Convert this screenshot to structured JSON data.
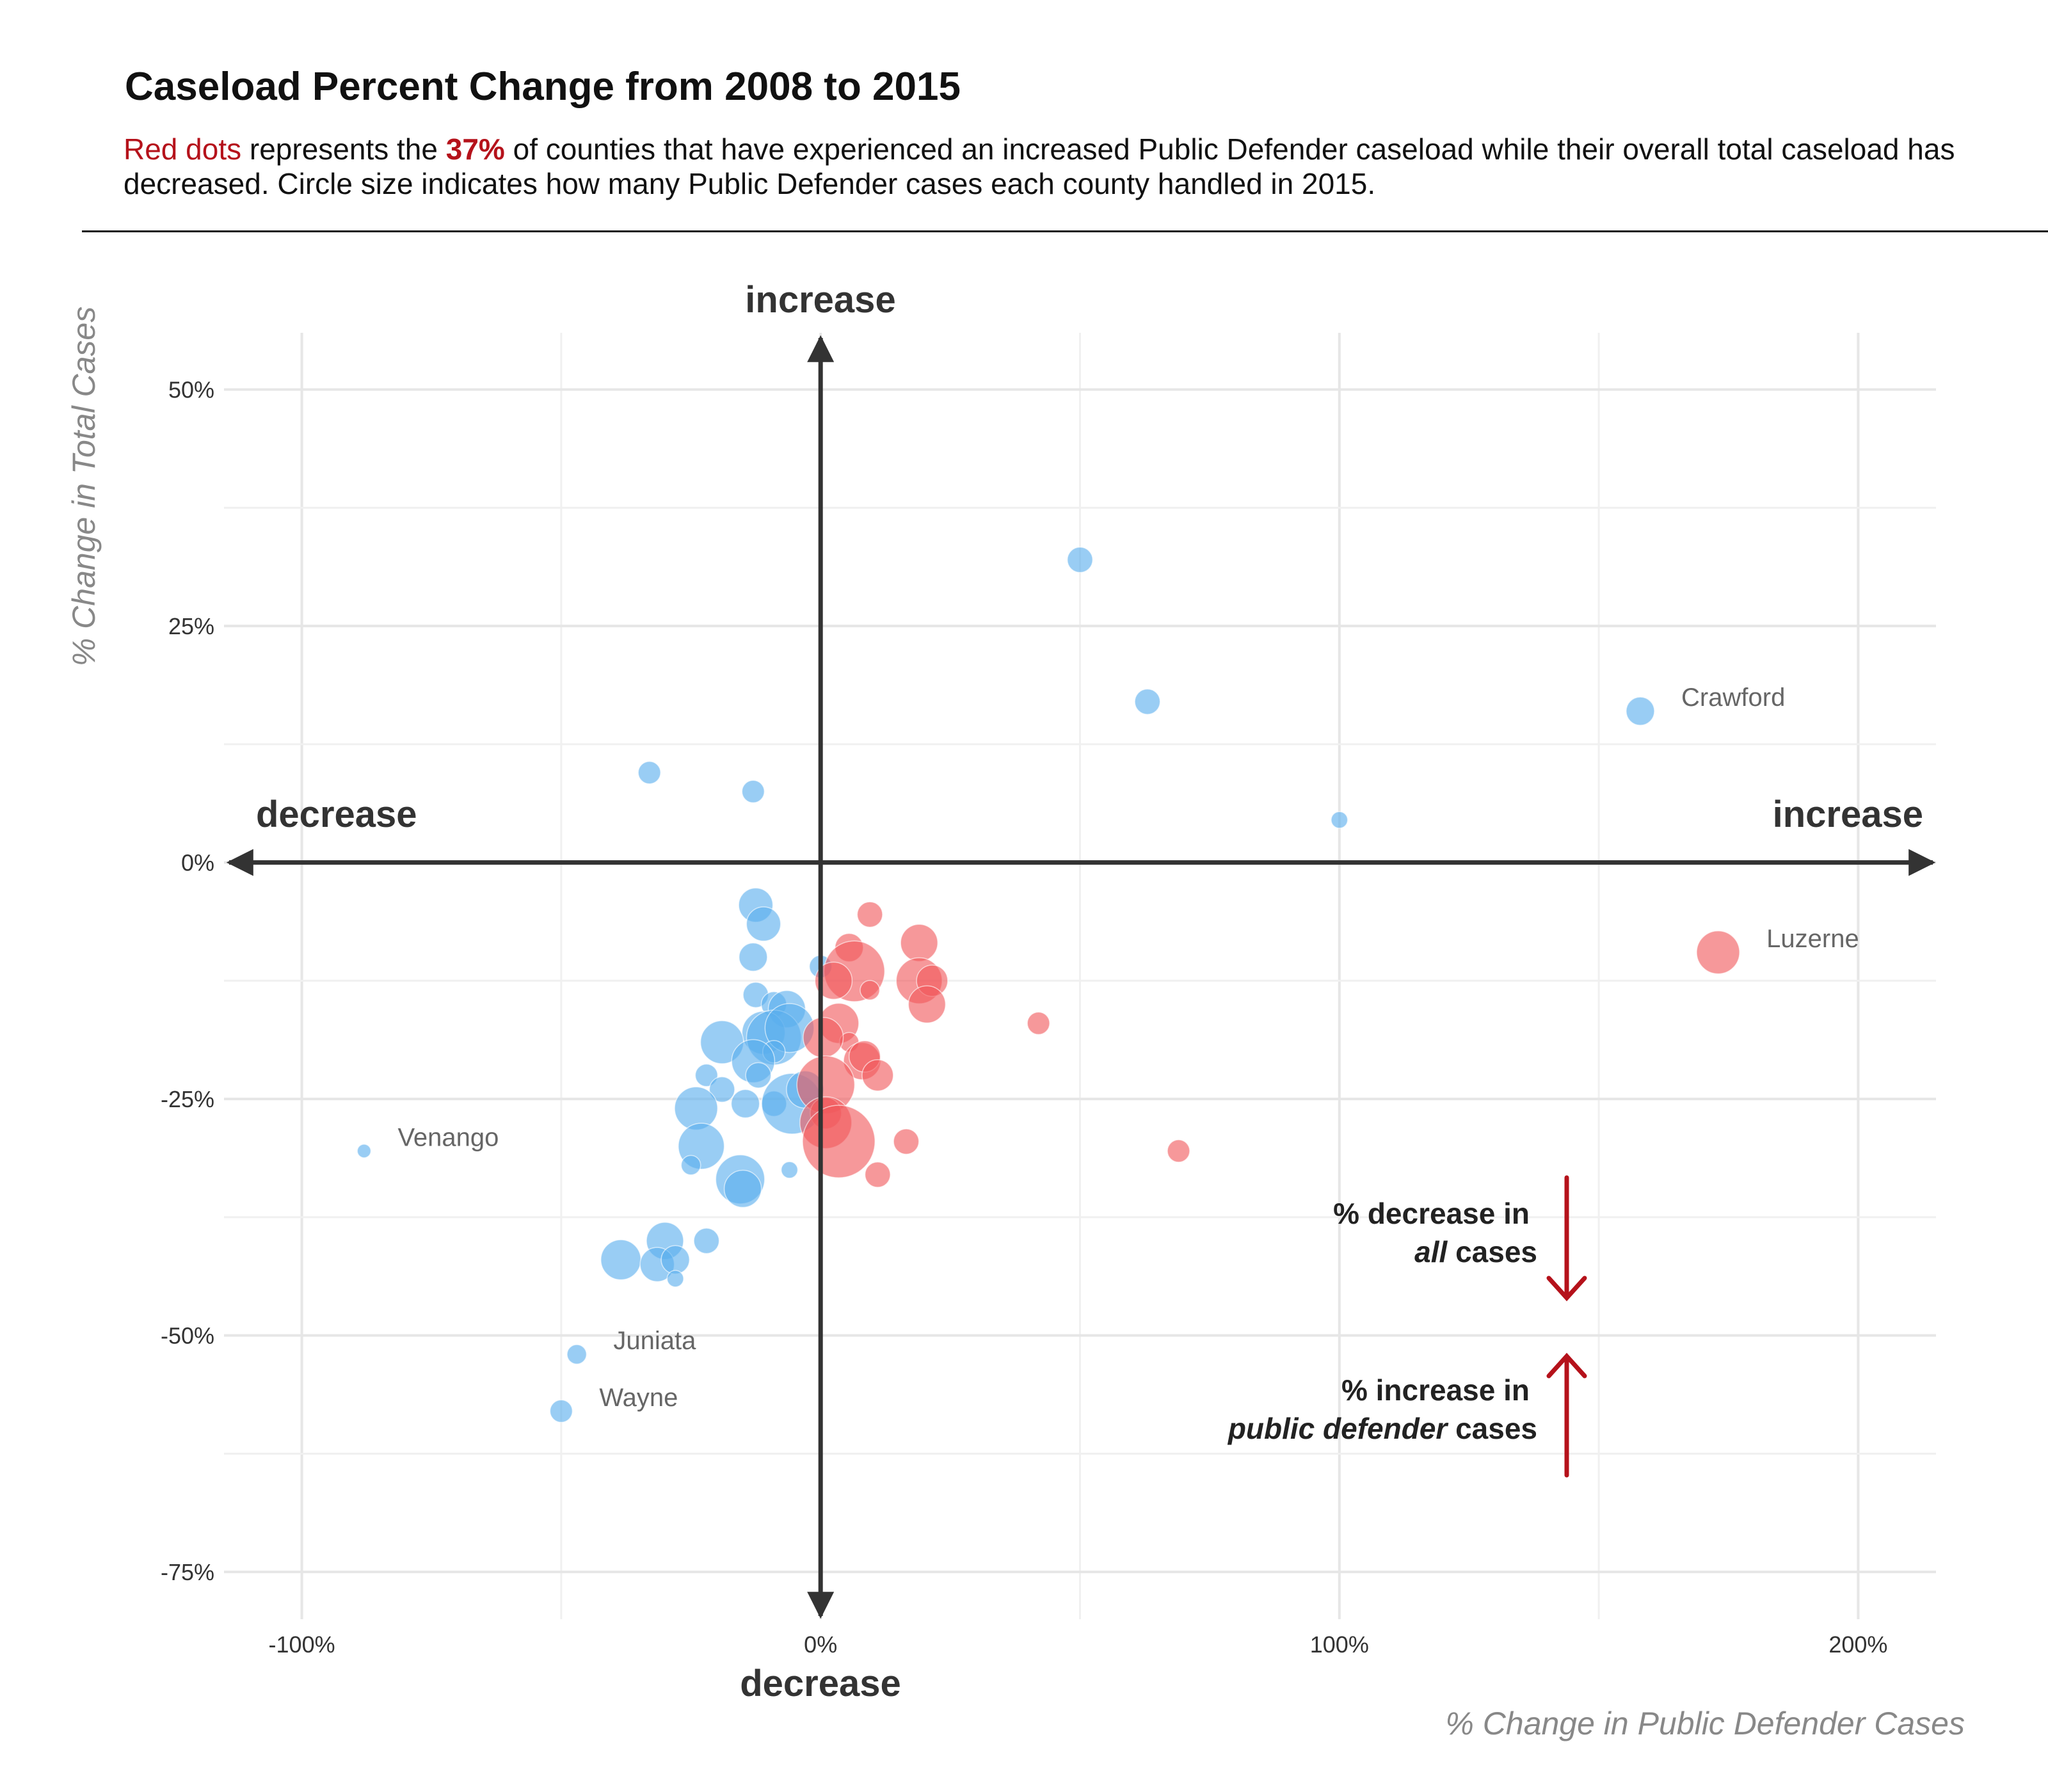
{
  "header": {
    "title": "Caseload Percent Change from 2008 to 2015",
    "subtitle_part1": "Red dots",
    "subtitle_part2": " represents the ",
    "subtitle_part3": "37%",
    "subtitle_part4": " of counties that have experienced an increased Public Defender caseload while their overall total caseload has decreased. Circle size indicates how many Public Defender cases each county handled in 2015."
  },
  "colors": {
    "increase_pd_decrease_total": "#f0585c",
    "other": "#5aaeee",
    "arrow": "#333333",
    "legend_arrow": "#b5121b"
  },
  "directions": {
    "top": "increase",
    "bottom": "decrease",
    "left": "decrease",
    "right": "increase"
  },
  "legend": {
    "down_line1": "% decrease in",
    "down_line2_italic": "all",
    "down_line2_rest": " cases",
    "up_line1": "% increase in",
    "up_line2_italic": "public defender",
    "up_line2_rest": " cases"
  },
  "chart_data": {
    "type": "scatter",
    "xlabel": "% Change in Public Defender Cases",
    "ylabel": "% Change in Total Cases",
    "xlim": [
      -115,
      215
    ],
    "ylim": [
      -80,
      56
    ],
    "x_ticks": [
      -100,
      0,
      100,
      200
    ],
    "x_tick_labels": [
      "-100%",
      "0%",
      "100%",
      "200%"
    ],
    "y_ticks": [
      50,
      25,
      0,
      -25,
      -50,
      -75
    ],
    "y_tick_labels": [
      "50%",
      "25%",
      "0%",
      "-25%",
      "-50%",
      "-75%"
    ],
    "grid": true,
    "size_meaning": "Public Defender cases handled in 2015",
    "points": [
      {
        "x": 50,
        "y": 32,
        "size": 3,
        "group": "other"
      },
      {
        "x": 63,
        "y": 17,
        "size": 3,
        "group": "other"
      },
      {
        "x": 158,
        "y": 16,
        "size": 3.5,
        "group": "other",
        "label": "Crawford"
      },
      {
        "x": 100,
        "y": 4.5,
        "size": 1.5,
        "group": "other"
      },
      {
        "x": -33,
        "y": 9.5,
        "size": 2.5,
        "group": "other"
      },
      {
        "x": -13,
        "y": 7.5,
        "size": 2.5,
        "group": "other"
      },
      {
        "x": 173,
        "y": -9.5,
        "size": 6,
        "group": "increase_pd_decrease_total",
        "label": "Luzerne"
      },
      {
        "x": -88,
        "y": -30.5,
        "size": 1,
        "group": "other",
        "label": "Venango"
      },
      {
        "x": -47,
        "y": -52,
        "size": 2,
        "group": "other",
        "label": "Juniata"
      },
      {
        "x": -50,
        "y": -58,
        "size": 2.5,
        "group": "other",
        "label": "Wayne"
      },
      {
        "x": -12.5,
        "y": -4.5,
        "size": 4.5,
        "group": "other"
      },
      {
        "x": -11,
        "y": -6.5,
        "size": 4.5,
        "group": "other"
      },
      {
        "x": -13,
        "y": -10,
        "size": 3.5,
        "group": "other"
      },
      {
        "x": -12.5,
        "y": -14,
        "size": 3,
        "group": "other"
      },
      {
        "x": -9,
        "y": -15,
        "size": 3,
        "group": "other"
      },
      {
        "x": -6.5,
        "y": -15.5,
        "size": 5,
        "group": "other"
      },
      {
        "x": -11,
        "y": -18,
        "size": 6,
        "group": "other"
      },
      {
        "x": -9,
        "y": -18.5,
        "size": 8,
        "group": "other"
      },
      {
        "x": -6,
        "y": -17.5,
        "size": 7,
        "group": "other"
      },
      {
        "x": -9,
        "y": -20,
        "size": 2.5,
        "group": "other"
      },
      {
        "x": -19,
        "y": -19,
        "size": 6,
        "group": "other"
      },
      {
        "x": -13,
        "y": -21,
        "size": 6,
        "group": "other"
      },
      {
        "x": -12,
        "y": -22.5,
        "size": 3,
        "group": "other"
      },
      {
        "x": -22,
        "y": -22.5,
        "size": 2.5,
        "group": "other"
      },
      {
        "x": -19,
        "y": -24,
        "size": 3,
        "group": "other"
      },
      {
        "x": -14.5,
        "y": -25.5,
        "size": 3.5,
        "group": "other"
      },
      {
        "x": -9,
        "y": -25.5,
        "size": 3,
        "group": "other"
      },
      {
        "x": -24,
        "y": -26,
        "size": 6,
        "group": "other"
      },
      {
        "x": -5.5,
        "y": -25.5,
        "size": 9,
        "group": "other"
      },
      {
        "x": -3,
        "y": -24,
        "size": 5,
        "group": "other"
      },
      {
        "x": -23,
        "y": -30,
        "size": 6.5,
        "group": "other"
      },
      {
        "x": -25,
        "y": -32,
        "size": 2,
        "group": "other"
      },
      {
        "x": -15.5,
        "y": -33.5,
        "size": 7,
        "group": "other"
      },
      {
        "x": -15,
        "y": -34.5,
        "size": 5,
        "group": "other"
      },
      {
        "x": -6,
        "y": -32.5,
        "size": 1.5,
        "group": "other"
      },
      {
        "x": -22,
        "y": -40,
        "size": 3,
        "group": "other"
      },
      {
        "x": -30,
        "y": -40,
        "size": 5,
        "group": "other"
      },
      {
        "x": -38.5,
        "y": -42,
        "size": 5.5,
        "group": "other"
      },
      {
        "x": -31.5,
        "y": -42.5,
        "size": 4.5,
        "group": "other"
      },
      {
        "x": -28,
        "y": -42,
        "size": 3.5,
        "group": "other"
      },
      {
        "x": -28,
        "y": -44,
        "size": 1.5,
        "group": "other"
      },
      {
        "x": 0,
        "y": -11,
        "size": 2.5,
        "group": "other"
      },
      {
        "x": 9.5,
        "y": -5.5,
        "size": 3,
        "group": "increase_pd_decrease_total"
      },
      {
        "x": 5.5,
        "y": -9,
        "size": 3.5,
        "group": "increase_pd_decrease_total"
      },
      {
        "x": 19,
        "y": -8.5,
        "size": 5,
        "group": "increase_pd_decrease_total"
      },
      {
        "x": 6.5,
        "y": -11.5,
        "size": 9,
        "group": "increase_pd_decrease_total"
      },
      {
        "x": 2.5,
        "y": -12.5,
        "size": 5,
        "group": "increase_pd_decrease_total"
      },
      {
        "x": 9.5,
        "y": -13.5,
        "size": 2,
        "group": "increase_pd_decrease_total"
      },
      {
        "x": 19,
        "y": -12.5,
        "size": 6.5,
        "group": "increase_pd_decrease_total"
      },
      {
        "x": 21.5,
        "y": -12.5,
        "size": 4,
        "group": "increase_pd_decrease_total"
      },
      {
        "x": 20.5,
        "y": -15,
        "size": 5,
        "group": "increase_pd_decrease_total"
      },
      {
        "x": 3.5,
        "y": -17,
        "size": 5.5,
        "group": "increase_pd_decrease_total"
      },
      {
        "x": 5.5,
        "y": -19,
        "size": 2,
        "group": "increase_pd_decrease_total"
      },
      {
        "x": 0.5,
        "y": -18.5,
        "size": 5.5,
        "group": "increase_pd_decrease_total"
      },
      {
        "x": 8,
        "y": -21,
        "size": 5,
        "group": "increase_pd_decrease_total"
      },
      {
        "x": 8.5,
        "y": -20.5,
        "size": 4,
        "group": "increase_pd_decrease_total"
      },
      {
        "x": 11,
        "y": -22.5,
        "size": 4,
        "group": "increase_pd_decrease_total"
      },
      {
        "x": 42,
        "y": -17,
        "size": 2.5,
        "group": "increase_pd_decrease_total"
      },
      {
        "x": 1,
        "y": -23.5,
        "size": 8.5,
        "group": "increase_pd_decrease_total"
      },
      {
        "x": 1,
        "y": -26.5,
        "size": 4,
        "group": "increase_pd_decrease_total"
      },
      {
        "x": 1,
        "y": -27.5,
        "size": 7.5,
        "group": "increase_pd_decrease_total"
      },
      {
        "x": 3.5,
        "y": -29.5,
        "size": 11,
        "group": "increase_pd_decrease_total"
      },
      {
        "x": 16.5,
        "y": -29.5,
        "size": 3,
        "group": "increase_pd_decrease_total"
      },
      {
        "x": 11,
        "y": -33,
        "size": 3,
        "group": "increase_pd_decrease_total"
      },
      {
        "x": 69,
        "y": -30.5,
        "size": 2.5,
        "group": "increase_pd_decrease_total"
      }
    ],
    "annotations": [
      "Crawford",
      "Luzerne",
      "Venango",
      "Juniata",
      "Wayne"
    ]
  }
}
